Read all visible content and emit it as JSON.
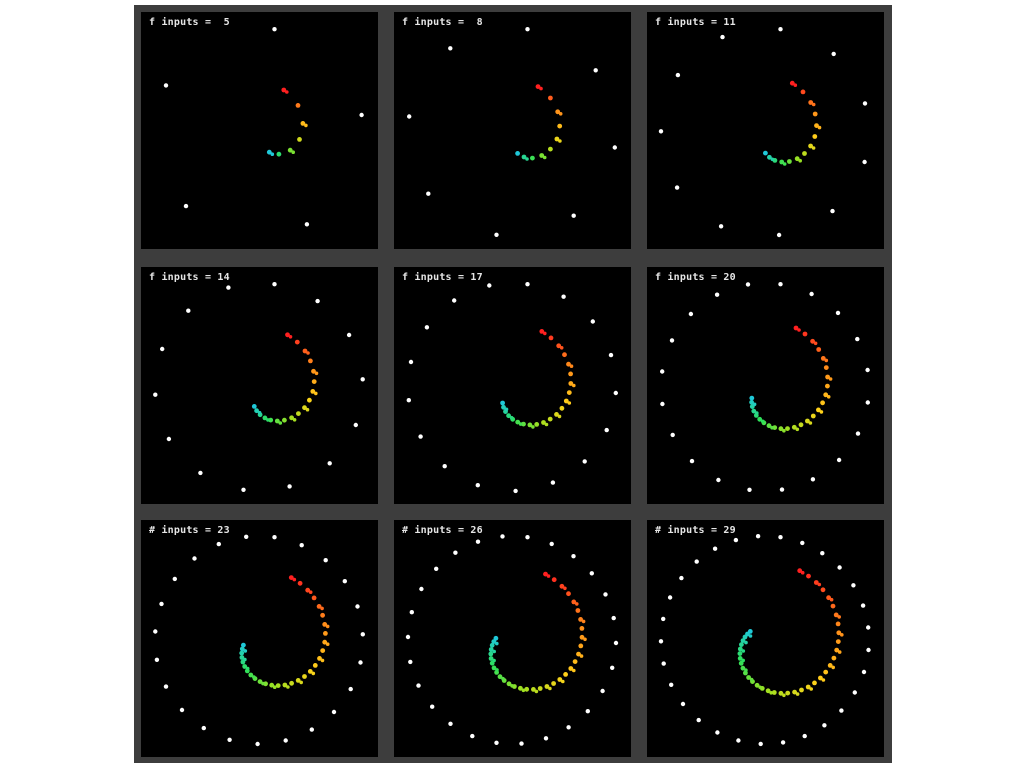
{
  "panels": [
    {
      "label": "f inputs =  5",
      "inputs": 5
    },
    {
      "label": "f inputs =  8",
      "inputs": 8
    },
    {
      "label": "f inputs = 11",
      "inputs": 11
    },
    {
      "label": "f inputs = 14",
      "inputs": 14
    },
    {
      "label": "f inputs = 17",
      "inputs": 17
    },
    {
      "label": "f inputs = 20",
      "inputs": 20
    },
    {
      "label": "# inputs = 23",
      "inputs": 23
    },
    {
      "label": "# inputs = 26",
      "inputs": 26
    },
    {
      "label": "# inputs = 29",
      "inputs": 29
    }
  ],
  "colors": {
    "background": "#000000",
    "frame": "#3d3d3d",
    "input_dots": "#ffffff",
    "label_text": "#e6e6e6",
    "spiral_gradient": [
      "#ff2020",
      "#ff8c1a",
      "#ffd21a",
      "#a0e020",
      "#2ee05a",
      "#1fc8d8"
    ]
  }
}
